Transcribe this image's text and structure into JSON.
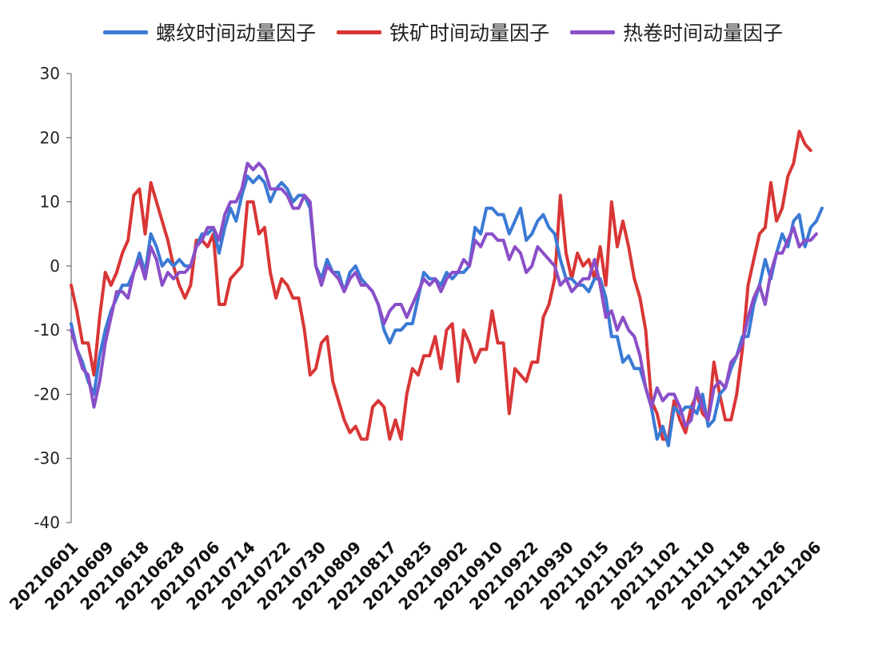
{
  "chart_data": {
    "type": "line",
    "title": "",
    "xlabel": "",
    "ylabel": "",
    "ylim": [
      -40,
      30
    ],
    "yticks": [
      30,
      20,
      10,
      0,
      -10,
      -20,
      -30,
      -40
    ],
    "grid": false,
    "legend_position": "top-center",
    "xtick_labels": [
      "20210601",
      "20210609",
      "20210618",
      "20210628",
      "20210706",
      "20210714",
      "20210722",
      "20210730",
      "20210809",
      "20210817",
      "20210825",
      "20210902",
      "20210910",
      "20210922",
      "20210930",
      "20211015",
      "20211025",
      "20211102",
      "20211110",
      "20211118",
      "20211126",
      "20211206"
    ],
    "series": [
      {
        "name": "螺纹时间动量因子",
        "color": "#3a7ad5",
        "values": [
          -9,
          -13,
          -15,
          -18,
          -20,
          -14,
          -10,
          -7,
          -5,
          -3,
          -3,
          -1,
          2,
          -1,
          5,
          3,
          0,
          1,
          0,
          1,
          0,
          0,
          3,
          5,
          5,
          6,
          2,
          6,
          9,
          7,
          11,
          14,
          13,
          14,
          13,
          10,
          12,
          13,
          12,
          10,
          11,
          11,
          9,
          0,
          -2,
          1,
          -1,
          -1,
          -4,
          -1,
          0,
          -2,
          -3,
          -4,
          -6,
          -10,
          -12,
          -10,
          -10,
          -9,
          -9,
          -5,
          -1,
          -2,
          -2,
          -3,
          -1,
          -2,
          -1,
          -1,
          0,
          6,
          5,
          9,
          9,
          8,
          8,
          5,
          7,
          9,
          4,
          5,
          7,
          8,
          6,
          5,
          1,
          -2,
          -2,
          -3,
          -3,
          -4,
          -2,
          -2,
          -5,
          -11,
          -11,
          -15,
          -14,
          -16,
          -16,
          -19,
          -22,
          -27,
          -25,
          -28,
          -22,
          -23,
          -22,
          -22,
          -23,
          -20,
          -25,
          -24,
          -20,
          -19,
          -16,
          -14,
          -11,
          -11,
          -6,
          -3,
          1,
          -2,
          2,
          5,
          3,
          7,
          8,
          3,
          6,
          7,
          9
        ]
      },
      {
        "name": "铁矿时间动量因子",
        "color": "#d93636",
        "values": [
          -3,
          -7,
          -12,
          -12,
          -17,
          -8,
          -1,
          -3,
          -1,
          2,
          4,
          11,
          12,
          5,
          13,
          10,
          7,
          4,
          0,
          -3,
          -5,
          -3,
          4,
          4,
          3,
          5,
          -6,
          -6,
          -2,
          -1,
          0,
          10,
          10,
          5,
          6,
          -1,
          -5,
          -2,
          -3,
          -5,
          -5,
          -10,
          -17,
          -16,
          -12,
          -11,
          -18,
          -21,
          -24,
          -26,
          -25,
          -27,
          -27,
          -22,
          -21,
          -22,
          -27,
          -24,
          -27,
          -20,
          -16,
          -17,
          -14,
          -14,
          -11,
          -16,
          -10,
          -9,
          -18,
          -10,
          -12,
          -15,
          -13,
          -13,
          -7,
          -12,
          -12,
          -23,
          -16,
          -17,
          -18,
          -15,
          -15,
          -8,
          -6,
          -2,
          11,
          2,
          -2,
          2,
          0,
          1,
          -2,
          3,
          -3,
          10,
          3,
          7,
          3,
          -2,
          -5,
          -10,
          -21,
          -23,
          -27,
          -27,
          -21,
          -24,
          -26,
          -22,
          -20,
          -23,
          -24,
          -15,
          -20,
          -24,
          -24,
          -20,
          -13,
          -3,
          1,
          5,
          6,
          13,
          7,
          9,
          14,
          16,
          21,
          19,
          18
        ]
      },
      {
        "name": "热卷时间动量因子",
        "color": "#8a4fc8",
        "values": [
          -10,
          -13,
          -16,
          -17,
          -22,
          -18,
          -12,
          -8,
          -4,
          -4,
          -5,
          -1,
          1,
          -2,
          3,
          1,
          -3,
          -1,
          -2,
          -1,
          -1,
          0,
          3,
          4,
          6,
          6,
          4,
          8,
          10,
          10,
          12,
          16,
          15,
          16,
          15,
          12,
          12,
          12,
          11,
          9,
          9,
          11,
          10,
          0,
          -3,
          0,
          -1,
          -2,
          -4,
          -2,
          -1,
          -3,
          -3,
          -4,
          -6,
          -9,
          -7,
          -6,
          -6,
          -8,
          -6,
          -4,
          -2,
          -3,
          -2,
          -4,
          -2,
          -1,
          -1,
          1,
          0,
          4,
          3,
          5,
          5,
          4,
          4,
          1,
          3,
          2,
          -1,
          0,
          3,
          2,
          1,
          0,
          -3,
          -2,
          -4,
          -3,
          -2,
          -2,
          1,
          -3,
          -8,
          -7,
          -10,
          -8,
          -10,
          -11,
          -14,
          -19,
          -22,
          -19,
          -21,
          -20,
          -20,
          -22,
          -25,
          -24,
          -19,
          -22,
          -24,
          -19,
          -18,
          -19,
          -15,
          -14,
          -12,
          -8,
          -5,
          -3,
          -6,
          -1,
          2,
          2,
          4,
          6,
          3,
          4,
          4,
          5
        ]
      }
    ]
  }
}
